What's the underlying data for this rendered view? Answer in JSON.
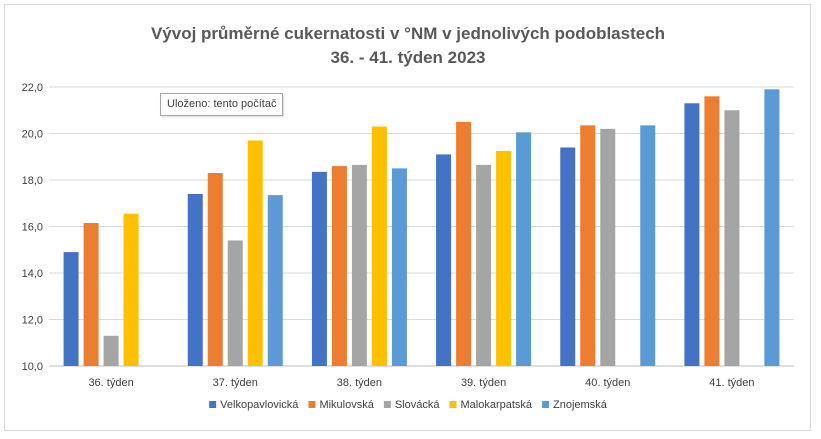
{
  "tooltip": "Uloženo: tento počítač",
  "chart_data": {
    "type": "bar",
    "title_lines": [
      "Vývoj průměrné cukernatosti v °NM v jednolivých podoblastech",
      "36. - 41. týden 2023"
    ],
    "categories": [
      "36. týden",
      "37. týden",
      "38. týden",
      "39. týden",
      "40. týden",
      "41. týden"
    ],
    "ylim": [
      10,
      22
    ],
    "yticks": [
      "10,0",
      "12,0",
      "14,0",
      "16,0",
      "18,0",
      "20,0",
      "22,0"
    ],
    "grid": true,
    "legend_position": "bottom",
    "series": [
      {
        "name": "Velkopavlovická",
        "color": "#4472c4",
        "values": [
          14.9,
          17.4,
          18.35,
          19.1,
          19.4,
          21.3
        ]
      },
      {
        "name": "Mikulovská",
        "color": "#ed7d31",
        "values": [
          16.15,
          18.3,
          18.6,
          20.5,
          20.35,
          21.6
        ]
      },
      {
        "name": "Slovácká",
        "color": "#a5a5a5",
        "values": [
          11.3,
          15.4,
          18.65,
          18.65,
          20.2,
          21.0
        ]
      },
      {
        "name": "Malokarpatská",
        "color": "#ffc000",
        "values": [
          16.55,
          19.7,
          20.3,
          19.25,
          null,
          null
        ]
      },
      {
        "name": "Znojemská",
        "color": "#5b9bd5",
        "values": [
          null,
          17.35,
          18.5,
          20.05,
          20.35,
          21.9
        ]
      }
    ]
  }
}
